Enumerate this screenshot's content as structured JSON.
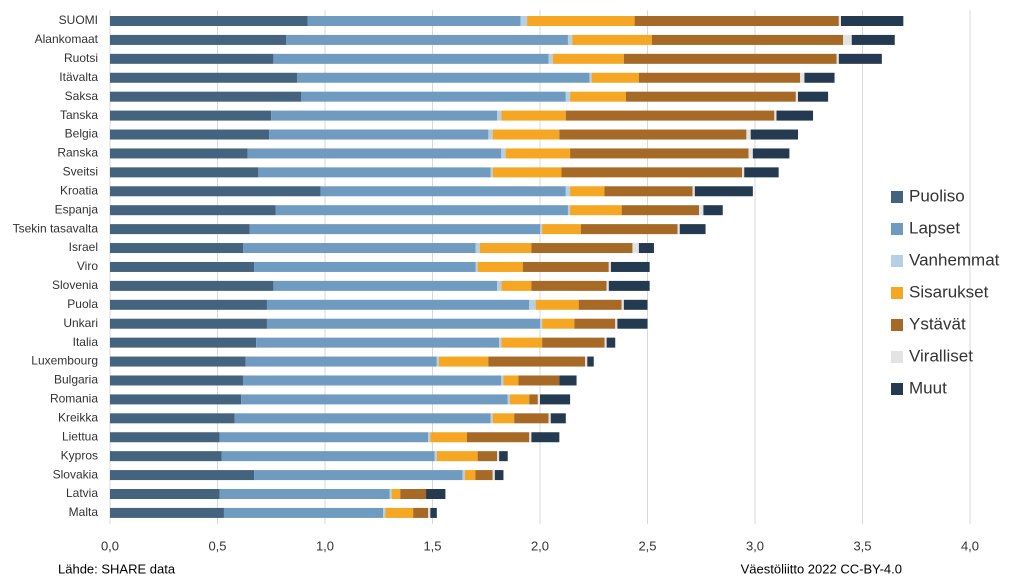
{
  "chart_data": {
    "type": "bar",
    "orientation": "horizontal",
    "stacked": true,
    "categories": [
      "SUOMI",
      "Alankomaat",
      "Ruotsi",
      "Itävalta",
      "Saksa",
      "Tanska",
      "Belgia",
      "Ranska",
      "Sveitsi",
      "Kroatia",
      "Espanja",
      "Tsekin tasavalta",
      "Israel",
      "Viro",
      "Slovenia",
      "Puola",
      "Unkari",
      "Italia",
      "Luxembourg",
      "Bulgaria",
      "Romania",
      "Kreikka",
      "Liettua",
      "Kypros",
      "Slovakia",
      "Latvia",
      "Malta"
    ],
    "series": [
      {
        "name": "Puoliso",
        "color": "#44637f",
        "values": [
          0.92,
          0.82,
          0.76,
          0.87,
          0.89,
          0.75,
          0.74,
          0.64,
          0.69,
          0.98,
          0.77,
          0.65,
          0.62,
          0.67,
          0.76,
          0.73,
          0.73,
          0.68,
          0.63,
          0.62,
          0.61,
          0.58,
          0.51,
          0.52,
          0.67,
          0.51,
          0.53
        ]
      },
      {
        "name": "Lapset",
        "color": "#6f9bc0",
        "values": [
          0.99,
          1.31,
          1.28,
          1.36,
          1.23,
          1.05,
          1.02,
          1.18,
          1.08,
          1.14,
          1.36,
          1.35,
          1.08,
          1.03,
          1.04,
          1.22,
          1.27,
          1.13,
          0.89,
          1.2,
          1.24,
          1.19,
          0.97,
          0.99,
          0.97,
          0.79,
          0.74
        ]
      },
      {
        "name": "Vanhemmat",
        "color": "#b5cfe3",
        "values": [
          0.03,
          0.02,
          0.02,
          0.01,
          0.02,
          0.02,
          0.02,
          0.02,
          0.01,
          0.02,
          0.01,
          0.01,
          0.02,
          0.01,
          0.02,
          0.03,
          0.01,
          0.01,
          0.01,
          0.01,
          0.01,
          0.01,
          0.01,
          0.01,
          0.01,
          0.01,
          0.01
        ]
      },
      {
        "name": "Sisarukset",
        "color": "#f5a623",
        "values": [
          0.5,
          0.37,
          0.33,
          0.22,
          0.26,
          0.3,
          0.31,
          0.3,
          0.32,
          0.16,
          0.24,
          0.18,
          0.24,
          0.21,
          0.14,
          0.2,
          0.15,
          0.19,
          0.23,
          0.07,
          0.09,
          0.1,
          0.17,
          0.19,
          0.05,
          0.04,
          0.13
        ]
      },
      {
        "name": "Ystävät",
        "color": "#a66a26",
        "values": [
          0.95,
          0.89,
          0.99,
          0.75,
          0.79,
          0.97,
          0.87,
          0.83,
          0.84,
          0.41,
          0.36,
          0.45,
          0.47,
          0.4,
          0.35,
          0.2,
          0.19,
          0.29,
          0.45,
          0.19,
          0.04,
          0.16,
          0.29,
          0.09,
          0.08,
          0.12,
          0.07
        ]
      },
      {
        "name": "Viralliset",
        "color": "#e3e3e3",
        "values": [
          0.01,
          0.04,
          0.01,
          0.02,
          0.01,
          0.01,
          0.02,
          0.02,
          0.01,
          0.01,
          0.02,
          0.01,
          0.03,
          0.01,
          0.01,
          0.01,
          0.01,
          0.01,
          0.01,
          0,
          0.01,
          0.01,
          0.01,
          0.01,
          0.01,
          0,
          0.01
        ]
      },
      {
        "name": "Muut",
        "color": "#233a50",
        "values": [
          0.29,
          0.2,
          0.2,
          0.14,
          0.14,
          0.17,
          0.22,
          0.17,
          0.16,
          0.27,
          0.09,
          0.12,
          0.07,
          0.18,
          0.19,
          0.11,
          0.14,
          0.04,
          0.03,
          0.08,
          0.14,
          0.07,
          0.13,
          0.04,
          0.04,
          0.09,
          0.03
        ]
      }
    ],
    "xlim": [
      0,
      4
    ],
    "xticks": [
      {
        "value": 0,
        "label": "0,0"
      },
      {
        "value": 0.5,
        "label": "0,5"
      },
      {
        "value": 1,
        "label": "1,0"
      },
      {
        "value": 1.5,
        "label": "1,5"
      },
      {
        "value": 2,
        "label": "2,0"
      },
      {
        "value": 2.5,
        "label": "2,5"
      },
      {
        "value": 3,
        "label": "3,0"
      },
      {
        "value": 3.5,
        "label": "3,5"
      },
      {
        "value": 4,
        "label": "4,0"
      }
    ],
    "grid": true,
    "legend": "right",
    "source": "Lähde: SHARE data",
    "credit": "Väestöliitto 2022 CC-BY-4.0"
  }
}
